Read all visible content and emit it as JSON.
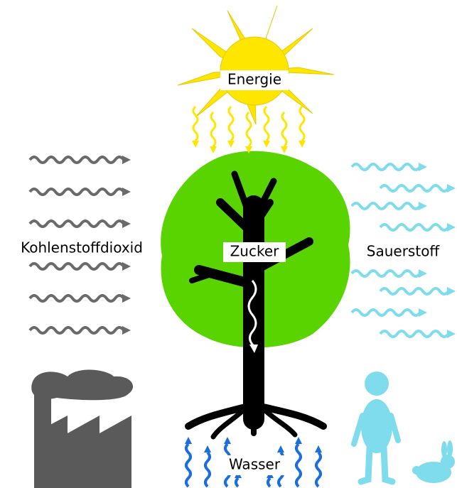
{
  "labels": {
    "energy": "Energie",
    "co2": "Kohlenstoffdioxid",
    "sugar": "Zucker",
    "oxygen": "Sauerstoff",
    "water": "Wasser"
  }
}
